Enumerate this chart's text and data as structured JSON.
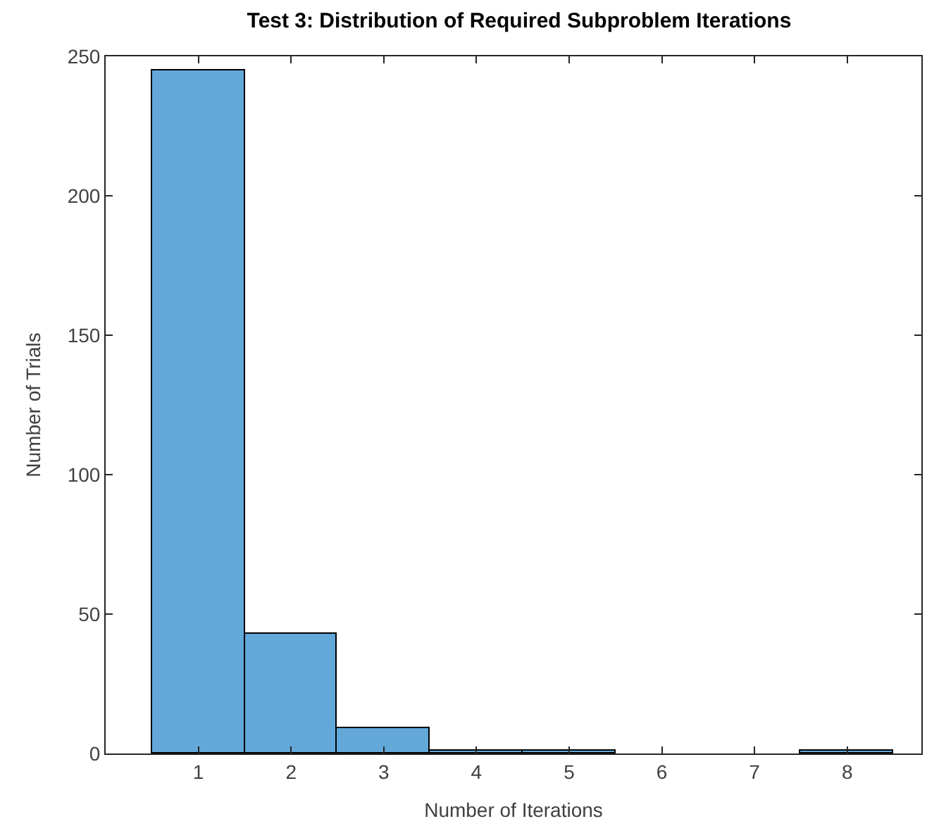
{
  "chart_data": {
    "type": "histogram",
    "title": "Test 3: Distribution of Required Subproblem Iterations",
    "xlabel": "Number of Iterations",
    "ylabel": "Number of Trials",
    "bins": [
      0.5,
      1.5,
      2.5,
      3.5,
      4.5,
      5.5,
      6.5,
      7.5,
      8.5
    ],
    "values": [
      245,
      43,
      9,
      1,
      1,
      0,
      0,
      1
    ],
    "color": "#62a8d9",
    "xlim": [
      0,
      8.8
    ],
    "xticks": [
      1,
      2,
      3,
      4,
      5,
      6,
      7,
      8
    ],
    "ylim": [
      0,
      250
    ],
    "yticks": [
      0,
      50,
      100,
      150,
      200,
      250
    ]
  }
}
